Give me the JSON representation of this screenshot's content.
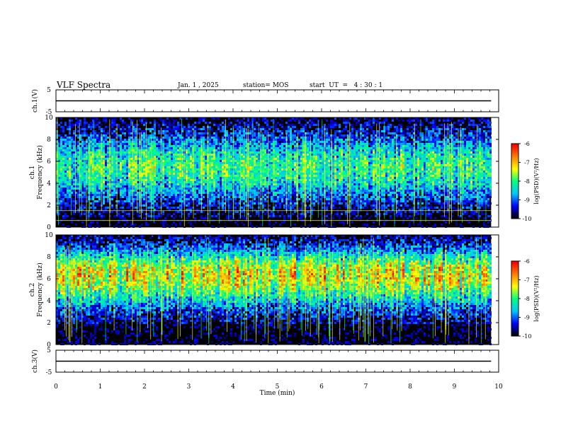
{
  "header": {
    "title": "VLF Spectra",
    "date": "Jan. 1 , 2025",
    "station": "station= MOS",
    "start_ut": "start  UT  =   4 : 30 : 1"
  },
  "colors": {
    "background": "#000000",
    "colormap": [
      "#000000",
      "#0000ff",
      "#00c8ff",
      "#00ff80",
      "#ffff00",
      "#ff8000",
      "#ff0000",
      "#ffffff"
    ],
    "trace": "#000000"
  },
  "chart_data": [
    {
      "type": "line",
      "panel": "ch1-waveform",
      "ylabel": "ch.1(V)",
      "ylim": [
        -5,
        5
      ],
      "yticks": [
        "5",
        "-5"
      ],
      "x": [
        0,
        9.83
      ],
      "y": [
        0,
        0
      ]
    },
    {
      "type": "heatmap",
      "panel": "ch1-spectrogram",
      "ylabel": "ch.1\nFrequency (kHz)",
      "ylim": [
        0,
        10
      ],
      "yticks": [
        "0",
        "2",
        "4",
        "6",
        "8",
        "10"
      ],
      "xlim": [
        0,
        10
      ],
      "data_extent_min": 9.83,
      "colorbar": {
        "label": "log(PSD)(V²/Hz)",
        "range": [
          -10,
          -6
        ],
        "ticks": [
          "-6",
          "-7",
          "-8",
          "-9",
          "-10"
        ]
      },
      "horizontal_lines_khz": [
        0.6,
        1.5
      ],
      "band_khz": [
        1.0,
        10.0
      ],
      "band_peak_khz": 5.5,
      "peak_log_psd": -7.5
    },
    {
      "type": "heatmap",
      "panel": "ch2-spectrogram",
      "ylabel": "ch.2\nFrequency (kHz)",
      "ylim": [
        0,
        10
      ],
      "yticks": [
        "0",
        "2",
        "4",
        "6",
        "8",
        "10"
      ],
      "xlim": [
        0,
        10
      ],
      "data_extent_min": 9.83,
      "colorbar": {
        "label": "log(PSD)(V²/Hz)",
        "range": [
          -10,
          -6
        ],
        "ticks": [
          "-6",
          "-7",
          "-8",
          "-9",
          "-10"
        ]
      },
      "band_khz": [
        2.0,
        10.0
      ],
      "band_peak_khz": 6.5,
      "peak_log_psd": -6.5
    },
    {
      "type": "line",
      "panel": "ch3-waveform",
      "ylabel": "ch.3(V)",
      "ylim": [
        -5,
        5
      ],
      "yticks": [
        "5",
        "-5"
      ],
      "x": [
        0,
        9.83
      ],
      "y": [
        0,
        0
      ]
    }
  ],
  "x_axis": {
    "label": "Time  (min)",
    "range": [
      0,
      10
    ],
    "ticks": [
      "0",
      "1",
      "2",
      "3",
      "4",
      "5",
      "6",
      "7",
      "8",
      "9",
      "10"
    ]
  }
}
